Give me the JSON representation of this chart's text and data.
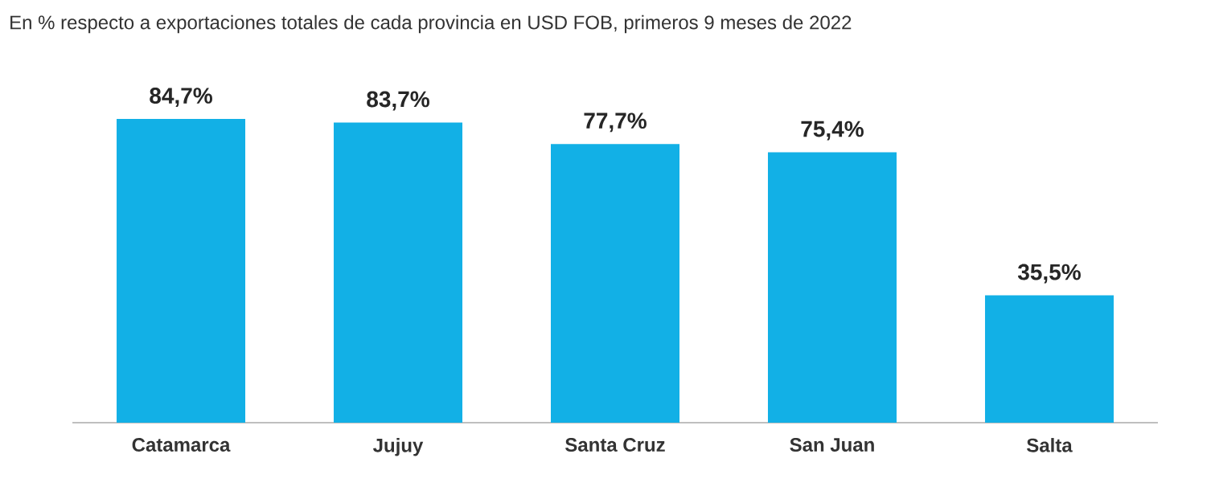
{
  "chart_data": {
    "type": "bar",
    "title": "En % respecto a exportaciones totales de cada provincia en USD FOB, primeros 9 meses de 2022",
    "categories": [
      "Catamarca",
      "Jujuy",
      "Santa Cruz",
      "San Juan",
      "Salta"
    ],
    "values": [
      84.7,
      83.7,
      77.7,
      75.4,
      35.5
    ],
    "value_labels": [
      "84,7%",
      "83,7%",
      "77,7%",
      "75,4%",
      "35,5%"
    ],
    "color": "#12b0e6"
  }
}
